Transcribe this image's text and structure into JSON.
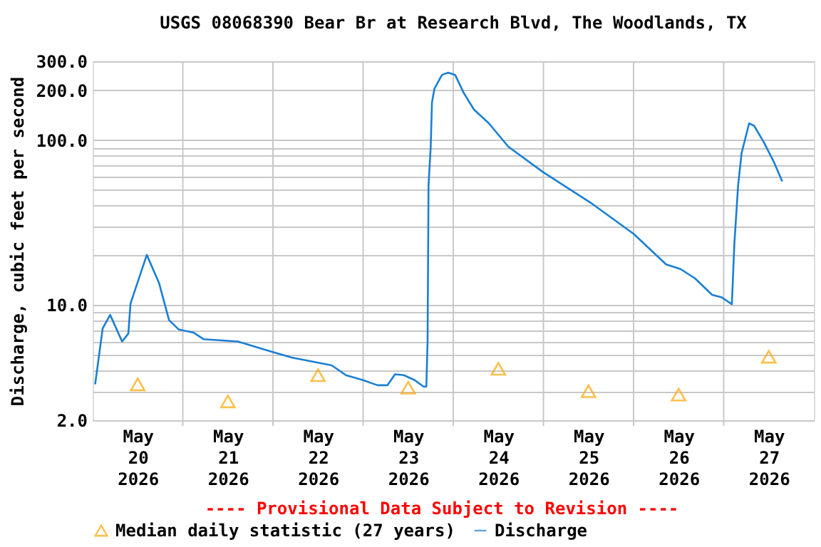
{
  "chart_data": {
    "type": "line",
    "title": "USGS 08068390 Bear Br at Research Blvd, The Woodlands, TX",
    "ylabel": "Discharge, cubic feet per second",
    "xlim": [
      "2026-05-20",
      "2026-05-28"
    ],
    "xticks": [
      {
        "value": "2026-05-20T12:00",
        "label": "May\n20\n2026"
      },
      {
        "value": "2026-05-21",
        "label": null
      },
      {
        "value": "2026-05-21T12:00",
        "label": "May\n21\n2026"
      },
      {
        "value": "2026-05-22",
        "label": null
      },
      {
        "value": "2026-05-22T12:00",
        "label": "May\n22\n2026"
      },
      {
        "value": "2026-05-23",
        "label": null
      },
      {
        "value": "2026-05-23T12:00",
        "label": "May\n23\n2026"
      },
      {
        "value": "2026-05-24",
        "label": null
      },
      {
        "value": "2026-05-24T12:00",
        "label": "May\n24\n2026"
      },
      {
        "value": "2026-05-25",
        "label": null
      },
      {
        "value": "2026-05-25T12:00",
        "label": "May\n25\n2026"
      },
      {
        "value": "2026-05-26",
        "label": null
      },
      {
        "value": "2026-05-26T12:00",
        "label": "May\n26\n2026"
      },
      {
        "value": "2026-05-27",
        "label": null
      },
      {
        "value": "2026-05-27T12:00",
        "label": "May\n27\n2026"
      }
    ],
    "ylim": [
      2,
      300
    ],
    "log": "y",
    "yticks": [
      {
        "value": 2,
        "label": "2.0"
      },
      {
        "value": 3,
        "label": null
      },
      {
        "value": 4,
        "label": null
      },
      {
        "value": 5,
        "label": null
      },
      {
        "value": 6,
        "label": null
      },
      {
        "value": 7,
        "label": null
      },
      {
        "value": 8,
        "label": null
      },
      {
        "value": 9,
        "label": null
      },
      {
        "value": 10,
        "label": "10.0"
      },
      {
        "value": 20,
        "label": null
      },
      {
        "value": 30,
        "label": null
      },
      {
        "value": 40,
        "label": null
      },
      {
        "value": 50,
        "label": null
      },
      {
        "value": 60,
        "label": null
      },
      {
        "value": 70,
        "label": null
      },
      {
        "value": 80,
        "label": null
      },
      {
        "value": 90,
        "label": null
      },
      {
        "value": 100,
        "label": "100.0"
      },
      {
        "value": 200,
        "label": "200.0"
      },
      {
        "value": 300,
        "label": "300.0"
      }
    ],
    "grid": true,
    "legend": "bottom",
    "annotations": [
      "---- Provisional Data Subject to Revision ----"
    ],
    "series": [
      {
        "name": "Median daily statistic (27 years)",
        "type": "scatter",
        "marker": "triangle",
        "color": "#ffa500",
        "x": [
          "2026-05-20T12:00",
          "2026-05-21T12:00",
          "2026-05-22T12:00",
          "2026-05-23T12:00",
          "2026-05-24T12:00",
          "2026-05-25T12:00",
          "2026-05-26T12:00",
          "2026-05-27T12:00"
        ],
        "values": [
          3.3,
          2.6,
          3.75,
          3.15,
          4.1,
          3.0,
          2.86,
          4.85
        ]
      },
      {
        "name": "Discharge",
        "color": "#1a7fd4",
        "x": [
          "2026-05-20T00:40",
          "2026-05-20T02:40",
          "2026-05-20T04:40",
          "2026-05-20T07:50",
          "2026-05-20T09:30",
          "2026-05-20T10:05",
          "2026-05-20T14:25",
          "2026-05-20T17:40",
          "2026-05-20T20:20",
          "2026-05-20T22:55",
          "2026-05-21T02:50",
          "2026-05-21T05:30",
          "2026-05-21T14:40",
          "2026-05-21T22:30",
          "2026-05-22T05:00",
          "2026-05-22T15:40",
          "2026-05-22T19:25",
          "2026-05-23T00:00",
          "2026-05-23T03:50",
          "2026-05-23T06:30",
          "2026-05-23T08:30",
          "2026-05-23T10:50",
          "2026-05-23T13:45",
          "2026-05-23T16:05",
          "2026-05-23T16:50",
          "2026-05-23T17:10",
          "2026-05-23T17:25",
          "2026-05-23T18:00",
          "2026-05-23T18:20",
          "2026-05-23T19:00",
          "2026-05-23T21:00",
          "2026-05-23T22:40",
          "2026-05-24T00:30",
          "2026-05-24T02:50",
          "2026-05-24T05:30",
          "2026-05-24T09:30",
          "2026-05-24T14:40",
          "2026-05-24T23:50",
          "2026-05-25T13:00",
          "2026-05-26T00:00",
          "2026-05-26T08:40",
          "2026-05-26T12:30",
          "2026-05-26T16:20",
          "2026-05-26T20:55",
          "2026-05-26T23:30",
          "2026-05-27T02:10",
          "2026-05-27T02:50",
          "2026-05-27T03:50",
          "2026-05-27T04:45",
          "2026-05-27T06:45",
          "2026-05-27T08:05",
          "2026-05-27T10:40",
          "2026-05-27T13:25",
          "2026-05-27T15:35"
        ],
        "values": [
          3.3,
          7.2,
          8.7,
          6.0,
          6.7,
          10.2,
          20.1,
          13.6,
          8.1,
          7.1,
          6.8,
          6.2,
          6.0,
          5.3,
          4.8,
          4.3,
          3.75,
          3.5,
          3.26,
          3.26,
          3.8,
          3.75,
          3.5,
          3.2,
          3.2,
          6.0,
          53,
          91,
          169,
          205,
          248,
          256,
          248,
          192,
          153,
          126,
          91,
          64,
          41,
          27,
          17.6,
          16.5,
          14.5,
          11.5,
          11.1,
          10.1,
          23.5,
          53,
          83,
          126,
          122,
          97,
          73,
          56
        ]
      }
    ]
  }
}
